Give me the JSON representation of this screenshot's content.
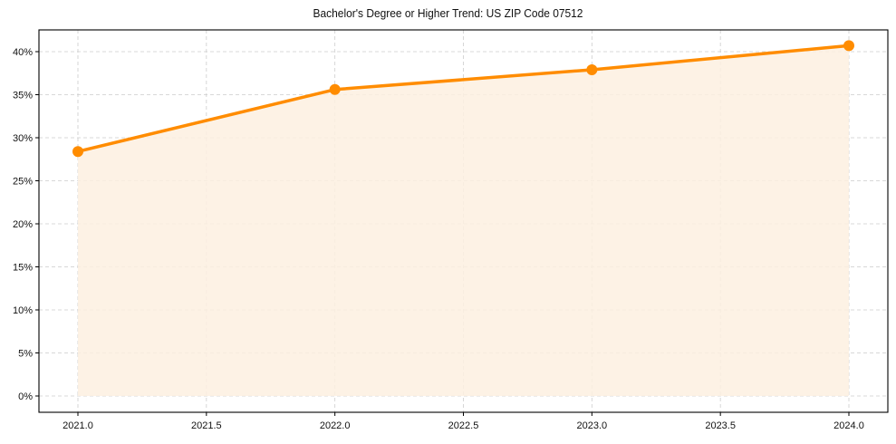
{
  "chart_data": {
    "type": "line",
    "title": "Bachelor's Degree or Higher Trend: US ZIP Code 07512",
    "xlabel": "",
    "ylabel": "",
    "x": [
      2021,
      2022,
      2023,
      2024
    ],
    "series": [
      {
        "name": "Bachelor's Degree or Higher",
        "values": [
          28.4,
          35.6,
          37.9,
          40.7
        ],
        "color": "#ff8c00",
        "fill_color": "#fdf0e1",
        "marker": "circle"
      }
    ],
    "xticks": [
      "2021.0",
      "2021.5",
      "2022.0",
      "2022.5",
      "2023.0",
      "2023.5",
      "2024.0"
    ],
    "xtick_values": [
      2021.0,
      2021.5,
      2022.0,
      2022.5,
      2023.0,
      2023.5,
      2024.0
    ],
    "yticks": [
      "0%",
      "5%",
      "10%",
      "15%",
      "20%",
      "25%",
      "30%",
      "35%",
      "40%"
    ],
    "ytick_values": [
      0,
      5,
      10,
      15,
      20,
      25,
      30,
      35,
      40
    ],
    "xlim": [
      2020.85,
      2025.15
    ],
    "ylim": [
      -1.9,
      42.6
    ],
    "grid": true,
    "legend": null
  }
}
